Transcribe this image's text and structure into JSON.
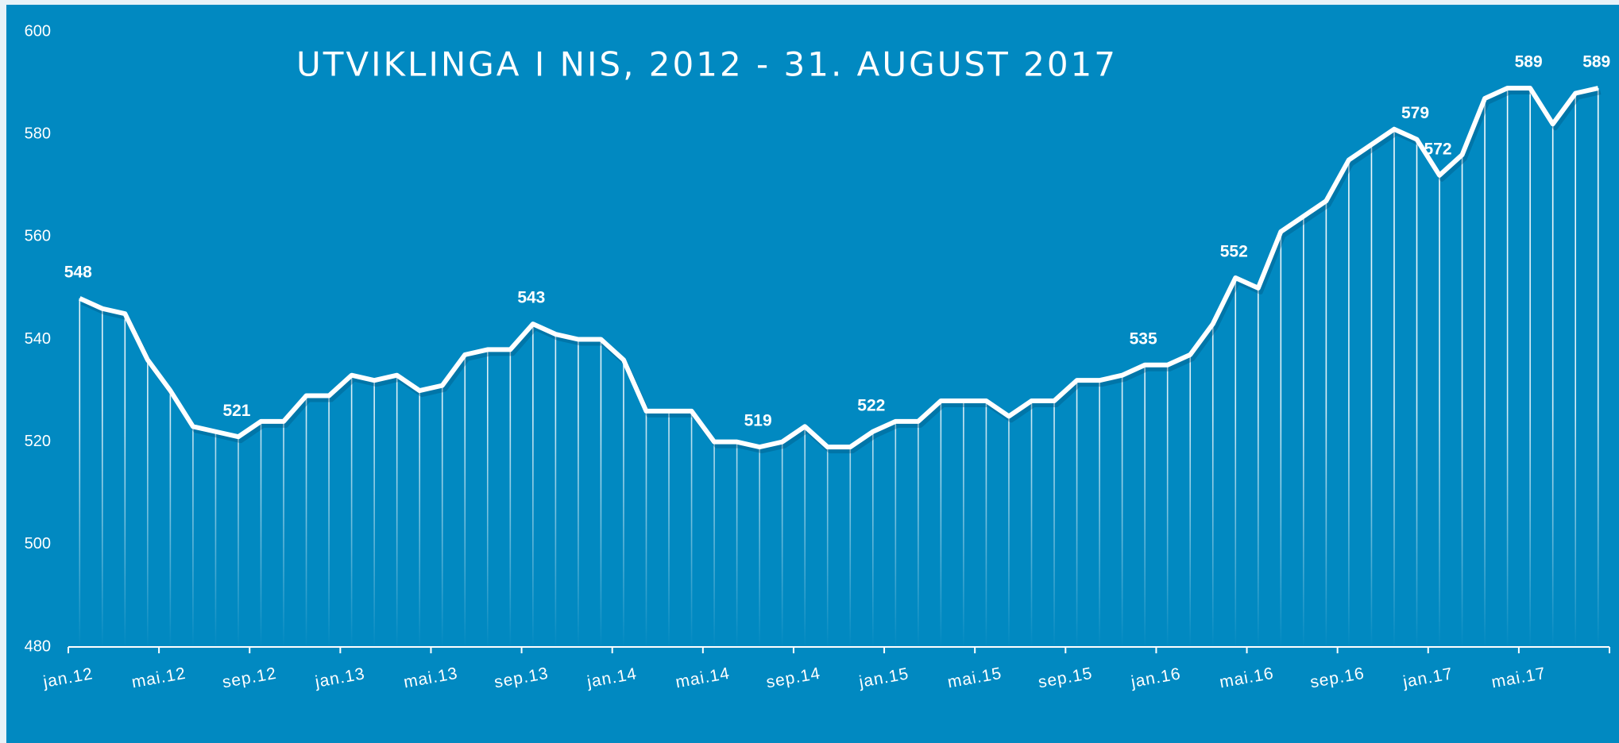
{
  "chart_data": {
    "type": "line",
    "title": "UTVIKLINGA I NIS, 2012 - 31. AUGUST 2017",
    "categories": [
      "jan.12",
      null,
      null,
      null,
      "mai.12",
      null,
      null,
      null,
      "sep.12",
      null,
      null,
      null,
      "jan.13",
      null,
      null,
      null,
      "mai.13",
      null,
      null,
      null,
      "sep.13",
      null,
      null,
      null,
      "jan.14",
      null,
      null,
      null,
      "mai.14",
      null,
      null,
      null,
      "sep.14",
      null,
      null,
      null,
      "jan.15",
      null,
      null,
      null,
      "mai.15",
      null,
      null,
      null,
      "sep.15",
      null,
      null,
      null,
      "jan.16",
      null,
      null,
      null,
      "mai.16",
      null,
      null,
      null,
      "sep.16",
      null,
      null,
      null,
      "jan.17",
      null,
      null,
      null,
      "mai.17",
      null,
      null,
      null
    ],
    "values": [
      548,
      546,
      545,
      536,
      530,
      523,
      522,
      521,
      524,
      524,
      529,
      529,
      533,
      532,
      533,
      530,
      531,
      537,
      538,
      538,
      543,
      541,
      540,
      540,
      536,
      526,
      526,
      526,
      520,
      520,
      519,
      520,
      523,
      519,
      519,
      522,
      524,
      524,
      528,
      528,
      528,
      525,
      528,
      528,
      532,
      532,
      533,
      535,
      535,
      537,
      543,
      552,
      550,
      561,
      564,
      567,
      575,
      578,
      581,
      579,
      572,
      576,
      587,
      589,
      589,
      582,
      588,
      589
    ],
    "value_labels": [
      "548",
      null,
      null,
      null,
      null,
      null,
      null,
      "521",
      null,
      null,
      null,
      null,
      null,
      null,
      null,
      null,
      null,
      null,
      null,
      null,
      "543",
      null,
      null,
      null,
      null,
      null,
      null,
      null,
      null,
      null,
      "519",
      null,
      null,
      null,
      null,
      "522",
      null,
      null,
      null,
      null,
      null,
      null,
      null,
      null,
      null,
      null,
      null,
      "535",
      null,
      null,
      null,
      "552",
      null,
      null,
      null,
      null,
      null,
      null,
      null,
      "579",
      "572",
      null,
      null,
      null,
      "589",
      null,
      null,
      "589"
    ],
    "color": "#ffffff",
    "ylim": [
      480,
      600
    ],
    "yticks": [
      480,
      500,
      520,
      540,
      560,
      580,
      600
    ],
    "grid": false
  }
}
